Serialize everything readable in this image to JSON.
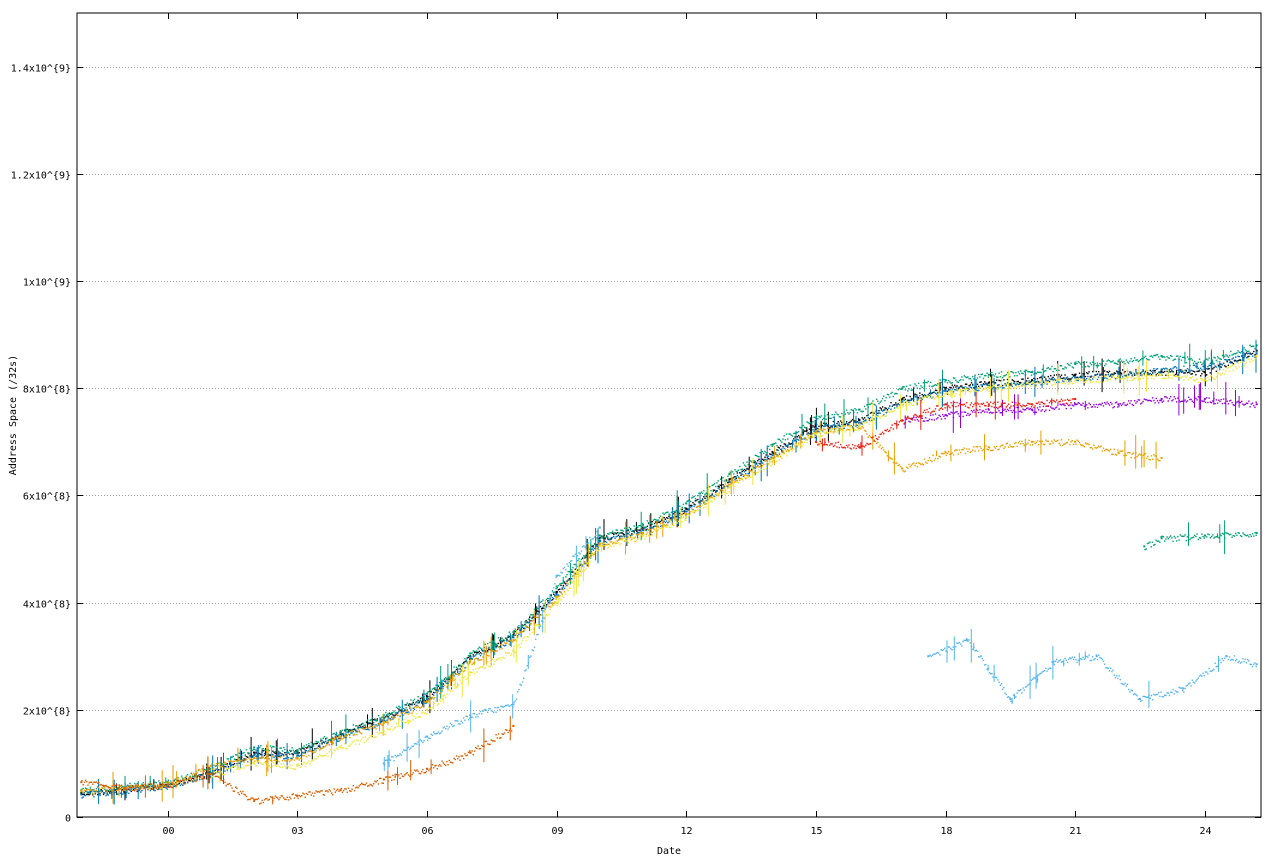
{
  "chart_data": {
    "type": "scatter",
    "title": "",
    "xlabel": "Date",
    "ylabel": "Address Space (/32s)",
    "x_ticks": [
      "00",
      "03",
      "06",
      "09",
      "12",
      "15",
      "18",
      "21",
      "24"
    ],
    "x_tick_values": [
      0,
      3,
      6,
      9,
      12,
      15,
      18,
      21,
      24
    ],
    "xlim": [
      -2.1,
      25.3
    ],
    "y_ticks": [
      {
        "value": 0,
        "label": "0"
      },
      {
        "value": 200000000,
        "label": "2x10^{8}"
      },
      {
        "value": 400000000,
        "label": "4x10^{8}"
      },
      {
        "value": 600000000,
        "label": "6x10^{8}"
      },
      {
        "value": 800000000,
        "label": "8x10^{8}"
      },
      {
        "value": 1000000000,
        "label": "1x10^{9}"
      },
      {
        "value": 1200000000,
        "label": "1.2x10^{9}"
      },
      {
        "value": 1400000000,
        "label": "1.4x10^{9}"
      }
    ],
    "ylim": [
      0,
      1500000000
    ],
    "grid": "horizontal dashed",
    "legend": "none",
    "series": [
      {
        "color": "#000000",
        "x": [
          -2.0,
          0,
          1,
          2,
          3,
          4,
          5,
          6,
          7,
          8,
          9,
          10,
          11,
          12,
          13,
          14,
          15,
          16,
          17,
          18,
          19,
          20,
          21,
          22,
          23,
          24,
          25.2
        ],
        "y": [
          45000000,
          60000000,
          85000000,
          120000000,
          120000000,
          155000000,
          185000000,
          225000000,
          300000000,
          340000000,
          420000000,
          520000000,
          540000000,
          575000000,
          630000000,
          680000000,
          730000000,
          740000000,
          780000000,
          800000000,
          810000000,
          815000000,
          825000000,
          830000000,
          830000000,
          830000000,
          870000000
        ]
      },
      {
        "color": "#009e73",
        "x": [
          -2.0,
          0,
          1,
          2,
          3,
          4,
          5,
          6,
          7,
          8,
          9,
          10,
          11,
          12,
          13,
          14,
          15,
          16,
          17,
          18,
          19,
          20,
          21,
          22,
          23,
          24,
          25.2
        ],
        "y": [
          50000000,
          65000000,
          90000000,
          130000000,
          125000000,
          160000000,
          190000000,
          230000000,
          305000000,
          345000000,
          430000000,
          525000000,
          545000000,
          585000000,
          640000000,
          695000000,
          745000000,
          760000000,
          800000000,
          815000000,
          825000000,
          830000000,
          845000000,
          850000000,
          860000000,
          850000000,
          880000000
        ]
      },
      {
        "color": "#0072b2",
        "x": [
          -2.0,
          0,
          1,
          2,
          3,
          4,
          5,
          6,
          7,
          8,
          9,
          10,
          11,
          12,
          13,
          14,
          15,
          16,
          17,
          18,
          19,
          20,
          21,
          22,
          23,
          24,
          25.2
        ],
        "y": [
          42000000,
          58000000,
          82000000,
          115000000,
          115000000,
          150000000,
          180000000,
          220000000,
          295000000,
          335000000,
          415000000,
          515000000,
          535000000,
          570000000,
          625000000,
          675000000,
          725000000,
          735000000,
          775000000,
          795000000,
          805000000,
          810000000,
          820000000,
          825000000,
          835000000,
          840000000,
          865000000
        ]
      },
      {
        "color": "#e69f00",
        "x": [
          -2.0,
          0,
          1,
          2,
          3,
          4,
          5,
          6,
          7,
          8,
          9,
          10,
          11,
          12,
          13,
          14,
          15,
          16,
          17,
          18,
          19,
          20,
          21,
          22,
          23
        ],
        "y": [
          48000000,
          62000000,
          95000000,
          110000000,
          110000000,
          150000000,
          175000000,
          215000000,
          290000000,
          330000000,
          410000000,
          510000000,
          530000000,
          565000000,
          620000000,
          670000000,
          720000000,
          730000000,
          650000000,
          680000000,
          690000000,
          700000000,
          700000000,
          680000000,
          670000000
        ]
      },
      {
        "color": "#f0e442",
        "x": [
          1,
          2,
          3,
          4,
          5,
          6,
          7,
          8,
          9,
          10,
          11,
          12,
          13,
          14,
          15,
          16,
          17,
          18,
          19,
          20,
          21,
          22,
          23,
          24,
          25.2
        ],
        "y": [
          80000000,
          100000000,
          95000000,
          130000000,
          160000000,
          200000000,
          270000000,
          310000000,
          400000000,
          505000000,
          525000000,
          560000000,
          615000000,
          665000000,
          715000000,
          730000000,
          770000000,
          790000000,
          800000000,
          810000000,
          815000000,
          820000000,
          825000000,
          815000000,
          860000000
        ]
      },
      {
        "color": "#d55e00",
        "x": [
          -2.0,
          -1,
          0,
          1,
          2,
          3,
          4,
          5,
          6,
          7,
          8
        ],
        "y": [
          65000000,
          55000000,
          60000000,
          80000000,
          30000000,
          40000000,
          50000000,
          70000000,
          90000000,
          120000000,
          170000000
        ]
      },
      {
        "color": "#56b4e9",
        "x": [
          5,
          6,
          7,
          8,
          9,
          10
        ],
        "y": [
          100000000,
          150000000,
          190000000,
          210000000,
          450000000,
          540000000
        ]
      },
      {
        "color": "#9400d3",
        "x": [
          17,
          18,
          19,
          20,
          21,
          22,
          23,
          24,
          25.2
        ],
        "y": [
          740000000,
          750000000,
          760000000,
          760000000,
          770000000,
          770000000,
          780000000,
          780000000,
          770000000
        ]
      },
      {
        "color": "#e51e10",
        "x": [
          15,
          16,
          17,
          18,
          19,
          20,
          21
        ],
        "y": [
          700000000,
          690000000,
          740000000,
          770000000,
          770000000,
          770000000,
          780000000
        ]
      },
      {
        "color": "#009e73",
        "x": [
          22.6,
          23,
          24,
          25.2
        ],
        "y": [
          505000000,
          520000000,
          525000000,
          530000000
        ]
      },
      {
        "color": "#56b4e9",
        "x": [
          17.6,
          18.5,
          19.5,
          20.5,
          21.5,
          22.5,
          23.5,
          24.5,
          25.2
        ],
        "y": [
          300000000,
          330000000,
          220000000,
          290000000,
          300000000,
          220000000,
          240000000,
          300000000,
          285000000
        ]
      }
    ]
  }
}
